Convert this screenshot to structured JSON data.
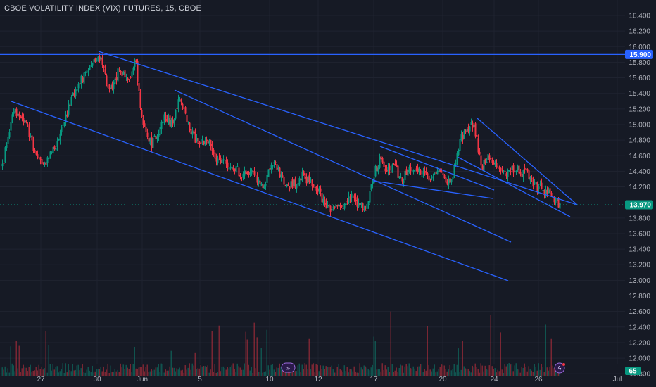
{
  "header": {
    "title": "CBOE VOLATILITY INDEX (VIX) FUTURES, 15, CBOE"
  },
  "chart_data": {
    "type": "candlestick",
    "y_axis": {
      "ticks": [
        16.4,
        16.2,
        16.0,
        15.8,
        15.6,
        15.4,
        15.2,
        15.0,
        14.8,
        14.6,
        14.4,
        14.2,
        13.8,
        13.6,
        13.4,
        13.2,
        13.0,
        12.8,
        12.6,
        12.4,
        12.2,
        12.0,
        11.8
      ],
      "tick_labels": [
        "16.400",
        "16.200",
        "16.000",
        "15.800",
        "15.600",
        "15.400",
        "15.200",
        "15.000",
        "14.800",
        "14.600",
        "14.400",
        "14.200",
        "13.800",
        "13.600",
        "13.400",
        "13.200",
        "13.000",
        "12.800",
        "12.600",
        "12.400",
        "12.200",
        "12.000",
        "11.800"
      ]
    },
    "x_axis": {
      "tick_labels": [
        "27",
        "30",
        "Jun",
        "5",
        "10",
        "12",
        "17",
        "20",
        "24",
        "26",
        "Jul"
      ]
    },
    "price_tags": [
      {
        "label": "15.900",
        "value": 15.9,
        "color": "#2962ff"
      },
      {
        "label": "13.970",
        "value": 13.97,
        "color": "#089981"
      }
    ],
    "volume_tag": {
      "label": "65",
      "color": "#089981"
    },
    "horizontal_line": {
      "value": 15.9,
      "color": "#2962ff"
    },
    "trendlines": [
      {
        "color": "#2962ff"
      },
      {
        "color": "#2962ff"
      },
      {
        "color": "#2962ff"
      },
      {
        "color": "#2962ff"
      },
      {
        "color": "#2962ff"
      },
      {
        "color": "#2962ff"
      },
      {
        "color": "#2962ff"
      }
    ],
    "colors": {
      "up": "#089981",
      "down": "#f23645",
      "background": "#161a25",
      "grid": "#1f2330"
    },
    "price_path": [
      {
        "x": 3,
        "price": 14.45
      },
      {
        "x": 12,
        "price": 14.9
      },
      {
        "x": 20,
        "price": 15.2
      },
      {
        "x": 28,
        "price": 15.1
      },
      {
        "x": 38,
        "price": 15.0
      },
      {
        "x": 48,
        "price": 14.65
      },
      {
        "x": 58,
        "price": 14.5
      },
      {
        "x": 68,
        "price": 14.55
      },
      {
        "x": 78,
        "price": 14.7
      },
      {
        "x": 90,
        "price": 15.0
      },
      {
        "x": 100,
        "price": 15.3
      },
      {
        "x": 112,
        "price": 15.55
      },
      {
        "x": 122,
        "price": 15.65
      },
      {
        "x": 132,
        "price": 15.8
      },
      {
        "x": 142,
        "price": 15.85
      },
      {
        "x": 152,
        "price": 15.5
      },
      {
        "x": 160,
        "price": 15.45
      },
      {
        "x": 168,
        "price": 15.7
      },
      {
        "x": 178,
        "price": 15.65
      },
      {
        "x": 186,
        "price": 15.6
      },
      {
        "x": 192,
        "price": 15.85
      },
      {
        "x": 198,
        "price": 15.3
      },
      {
        "x": 206,
        "price": 14.9
      },
      {
        "x": 214,
        "price": 14.75
      },
      {
        "x": 224,
        "price": 14.85
      },
      {
        "x": 234,
        "price": 15.1
      },
      {
        "x": 244,
        "price": 15.0
      },
      {
        "x": 254,
        "price": 15.35
      },
      {
        "x": 264,
        "price": 15.1
      },
      {
        "x": 274,
        "price": 14.85
      },
      {
        "x": 284,
        "price": 14.75
      },
      {
        "x": 294,
        "price": 14.8
      },
      {
        "x": 304,
        "price": 14.6
      },
      {
        "x": 316,
        "price": 14.5
      },
      {
        "x": 328,
        "price": 14.45
      },
      {
        "x": 338,
        "price": 14.4
      },
      {
        "x": 348,
        "price": 14.35
      },
      {
        "x": 358,
        "price": 14.4
      },
      {
        "x": 366,
        "price": 14.25
      },
      {
        "x": 374,
        "price": 14.15
      },
      {
        "x": 382,
        "price": 14.4
      },
      {
        "x": 390,
        "price": 14.5
      },
      {
        "x": 400,
        "price": 14.3
      },
      {
        "x": 410,
        "price": 14.2
      },
      {
        "x": 420,
        "price": 14.25
      },
      {
        "x": 430,
        "price": 14.35
      },
      {
        "x": 440,
        "price": 14.25
      },
      {
        "x": 450,
        "price": 14.2
      },
      {
        "x": 460,
        "price": 14.0
      },
      {
        "x": 470,
        "price": 13.9
      },
      {
        "x": 480,
        "price": 14.0
      },
      {
        "x": 490,
        "price": 13.95
      },
      {
        "x": 500,
        "price": 14.1
      },
      {
        "x": 510,
        "price": 13.95
      },
      {
        "x": 520,
        "price": 13.95
      },
      {
        "x": 530,
        "price": 14.35
      },
      {
        "x": 540,
        "price": 14.55
      },
      {
        "x": 550,
        "price": 14.4
      },
      {
        "x": 560,
        "price": 14.45
      },
      {
        "x": 570,
        "price": 14.3
      },
      {
        "x": 580,
        "price": 14.4
      },
      {
        "x": 590,
        "price": 14.45
      },
      {
        "x": 600,
        "price": 14.35
      },
      {
        "x": 610,
        "price": 14.3
      },
      {
        "x": 620,
        "price": 14.4
      },
      {
        "x": 630,
        "price": 14.3
      },
      {
        "x": 640,
        "price": 14.25
      },
      {
        "x": 648,
        "price": 14.6
      },
      {
        "x": 656,
        "price": 14.85
      },
      {
        "x": 664,
        "price": 14.95
      },
      {
        "x": 672,
        "price": 15.0
      },
      {
        "x": 678,
        "price": 14.75
      },
      {
        "x": 684,
        "price": 14.45
      },
      {
        "x": 692,
        "price": 14.6
      },
      {
        "x": 700,
        "price": 14.5
      },
      {
        "x": 708,
        "price": 14.45
      },
      {
        "x": 716,
        "price": 14.35
      },
      {
        "x": 724,
        "price": 14.4
      },
      {
        "x": 732,
        "price": 14.45
      },
      {
        "x": 740,
        "price": 14.35
      },
      {
        "x": 748,
        "price": 14.4
      },
      {
        "x": 756,
        "price": 14.25
      },
      {
        "x": 764,
        "price": 14.2
      },
      {
        "x": 772,
        "price": 14.15
      },
      {
        "x": 780,
        "price": 14.15
      },
      {
        "x": 788,
        "price": 14.05
      },
      {
        "x": 795,
        "price": 13.97
      }
    ]
  }
}
